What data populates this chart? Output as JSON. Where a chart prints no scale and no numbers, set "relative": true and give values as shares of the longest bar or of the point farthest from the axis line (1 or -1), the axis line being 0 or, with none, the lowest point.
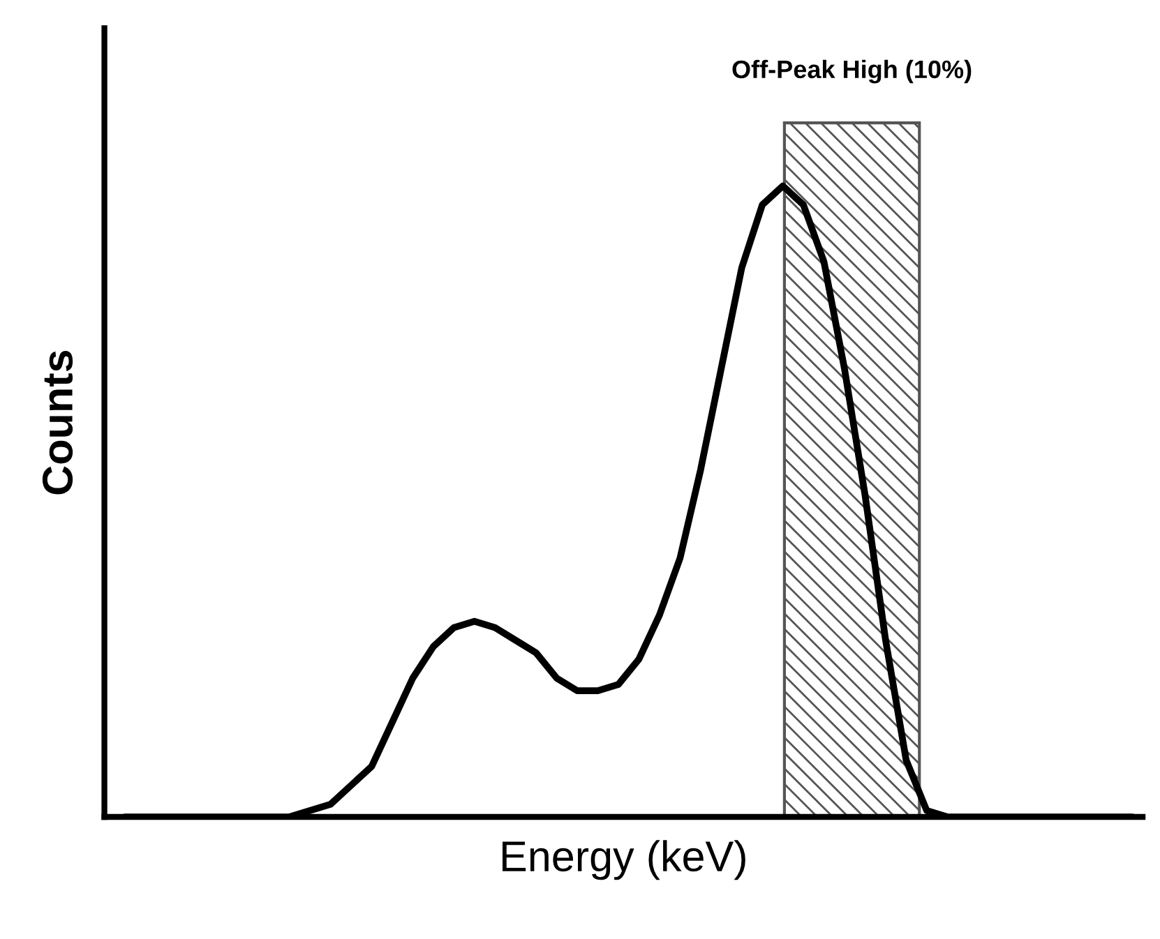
{
  "chart_data": {
    "type": "line",
    "relative": true,
    "xlabel": "Energy (keV)",
    "ylabel": "Counts",
    "categories": [
      null,
      null,
      null,
      null,
      null,
      null,
      null,
      null,
      null,
      null,
      null,
      null,
      null,
      null,
      null,
      null,
      null,
      null,
      null,
      null,
      null,
      null,
      null,
      null,
      null,
      null,
      null,
      null,
      null,
      null,
      null,
      null,
      null,
      null,
      null,
      null,
      null,
      null,
      null,
      null,
      null,
      null,
      null,
      null,
      null,
      null,
      null,
      null,
      null,
      null
    ],
    "series": [
      {
        "color": "#000000",
        "values": [
          0,
          0,
          0,
          0,
          0,
          0,
          0,
          0,
          0,
          0.01,
          0.02,
          0.05,
          0.08,
          0.15,
          0.22,
          0.27,
          0.3,
          0.31,
          0.3,
          0.28,
          0.26,
          0.22,
          0.2,
          0.2,
          0.21,
          0.25,
          0.32,
          0.41,
          0.55,
          0.71,
          0.87,
          0.97,
          1.0,
          0.97,
          0.88,
          0.71,
          0.51,
          0.28,
          0.09,
          0.01,
          0,
          0,
          0,
          0,
          0,
          0,
          0,
          0,
          0,
          0
        ]
      }
    ],
    "annotations": [
      "Off-Peak High (10%)"
    ],
    "tick_labels": false,
    "marker": "none",
    "line_style": "solid"
  }
}
